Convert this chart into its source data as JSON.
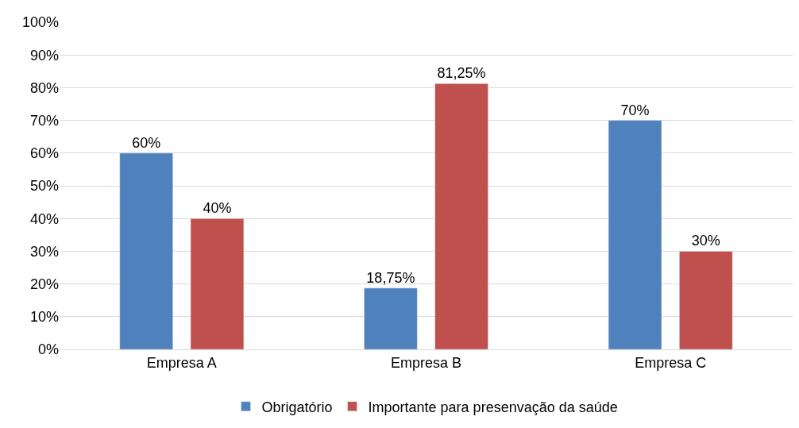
{
  "chart_data": {
    "type": "bar",
    "categories": [
      "Empresa A",
      "Empresa B",
      "Empresa C"
    ],
    "series": [
      {
        "name": "Obrigatório",
        "color": "#4f81bd",
        "values": [
          60,
          18.75,
          70
        ],
        "value_labels": [
          "60%",
          "18,75%",
          "70%"
        ]
      },
      {
        "name": "Importante para presenvação da saúde",
        "color": "#c0504d",
        "values": [
          40,
          81.25,
          30
        ],
        "value_labels": [
          "40%",
          "81,25%",
          "30%"
        ]
      }
    ],
    "ylim": [
      0,
      100
    ],
    "yticks": [
      {
        "value": 0,
        "label": "0%"
      },
      {
        "value": 10,
        "label": "10%"
      },
      {
        "value": 20,
        "label": "20%"
      },
      {
        "value": 30,
        "label": "30%"
      },
      {
        "value": 40,
        "label": "40%"
      },
      {
        "value": 50,
        "label": "50%"
      },
      {
        "value": 60,
        "label": "60%"
      },
      {
        "value": 70,
        "label": "70%"
      },
      {
        "value": 80,
        "label": "80%"
      },
      {
        "value": 90,
        "label": "90%"
      },
      {
        "value": 100,
        "label": "100%"
      }
    ],
    "grid": "y",
    "legend": "bottom"
  }
}
